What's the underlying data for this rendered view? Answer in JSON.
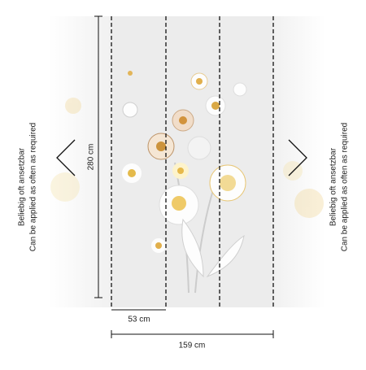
{
  "left_note": {
    "line1": "Beliebig oft ansetzbar",
    "line2": "Can be applied as often as required"
  },
  "right_note": {
    "line1": "Beliebig oft ansetzbar",
    "line2": "Can be applied as often as required"
  },
  "dimensions": {
    "height": "280 cm",
    "panel_width": "53 cm",
    "total_width": "159 cm"
  }
}
